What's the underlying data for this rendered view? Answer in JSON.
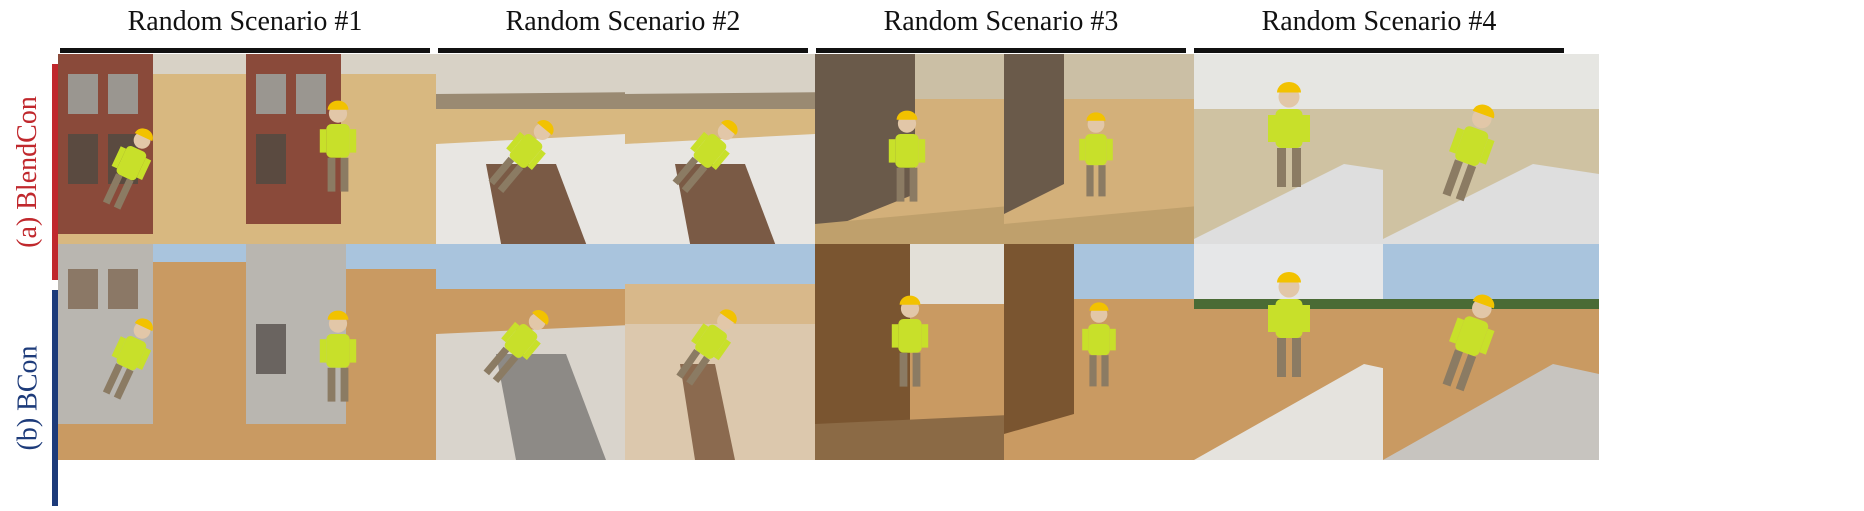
{
  "scenarios": [
    {
      "title": "Random Scenario #1"
    },
    {
      "title": "Random Scenario #2"
    },
    {
      "title": "Random Scenario #3"
    },
    {
      "title": "Random Scenario #4"
    }
  ],
  "rows": [
    {
      "label": "(a) BlendCon",
      "color": "#c0282d"
    },
    {
      "label": "(b) BCon",
      "color": "#1d3b7a"
    }
  ],
  "palette": {
    "desert_sky": "#d8d2c6",
    "desert_ground": "#d8b880",
    "site_sky": "#a9c4dd",
    "site_ground": "#c99a62",
    "brick": "#8a4a3a",
    "concrete": "#b9b6b0",
    "vest": "#c8e02a",
    "helmet": "#f2c200"
  }
}
